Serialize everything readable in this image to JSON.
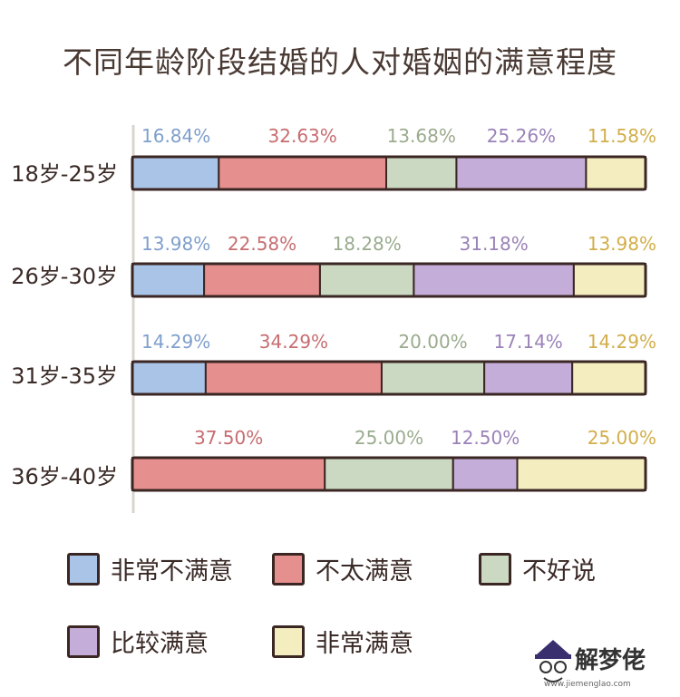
{
  "chart_data": {
    "type": "bar",
    "orientation": "horizontal",
    "stacked": true,
    "title": "不同年龄阶段结婚的人对婚姻的满意程度",
    "categories": [
      "18岁-25岁",
      "26岁-30岁",
      "31岁-35岁",
      "36岁-40岁"
    ],
    "series": [
      {
        "name": "非常不满意",
        "color": "#a9c4e6",
        "values": [
          16.84,
          13.98,
          14.29,
          0
        ],
        "labels": [
          "16.84%",
          "13.98%",
          "14.29%",
          ""
        ]
      },
      {
        "name": "不太满意",
        "color": "#e68f8f",
        "values": [
          32.63,
          22.58,
          34.29,
          37.5
        ],
        "labels": [
          "32.63%",
          "22.58%",
          "34.29%",
          "37.50%"
        ]
      },
      {
        "name": "不好说",
        "color": "#cbd9c3",
        "values": [
          13.68,
          18.28,
          20.0,
          25.0
        ],
        "labels": [
          "13.68%",
          "18.28%",
          "20.00%",
          "25.00%"
        ]
      },
      {
        "name": "比较满意",
        "color": "#c4aed9",
        "values": [
          25.26,
          31.18,
          17.14,
          12.5
        ],
        "labels": [
          "25.26%",
          "31.18%",
          "17.14%",
          "12.50%"
        ]
      },
      {
        "name": "非常满意",
        "color": "#f3edc0",
        "values": [
          11.58,
          13.98,
          14.29,
          25.0
        ],
        "labels": [
          "11.58%",
          "13.98%",
          "14.29%",
          "25.00%"
        ]
      }
    ],
    "label_colors": [
      "#7f9fcc",
      "#c76d70",
      "#9aab8e",
      "#9a82b8",
      "#d2ae4a"
    ],
    "xlim": [
      0,
      100
    ],
    "legend_position": "bottom",
    "grid": false
  },
  "watermark": {
    "text": "解梦佬",
    "url": "www.jiemenglao.com"
  }
}
